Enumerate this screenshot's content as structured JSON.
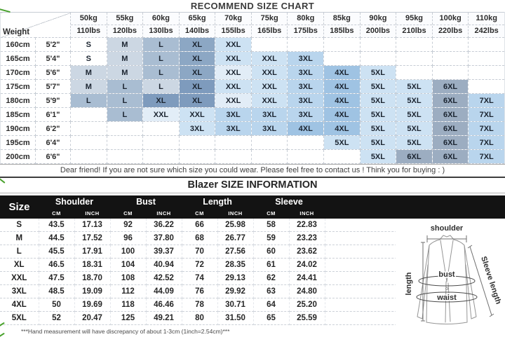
{
  "palette": {
    "w": "#ffffff",
    "a1": "#e2edf7",
    "a2": "#cde2f3",
    "a3": "#b9d5ed",
    "a4": "#9fc3e3",
    "b1": "#ccd7e3",
    "b2": "#a9bdd2",
    "b3": "#8ca7c4",
    "b4": "#7e9bbd",
    "g1": "#9cadc1",
    "header_bg": "#131313",
    "grid_line": "#c6ccd4",
    "artifact_green": "#49a22c"
  },
  "diagram": {
    "labels": {
      "shoulder": "shoulder",
      "length": "length",
      "sleeve": "Sleeve length",
      "bust": "bust",
      "waist": "waist"
    }
  },
  "chart_data": [
    {
      "type": "table",
      "title": "RECOMMEND SIZE CHART",
      "corner_label": "Weight",
      "columns": [
        {
          "kg": "50kg",
          "lbs": "110lbs"
        },
        {
          "kg": "55kg",
          "lbs": "120lbs"
        },
        {
          "kg": "60kg",
          "lbs": "130lbs"
        },
        {
          "kg": "65kg",
          "lbs": "140lbs"
        },
        {
          "kg": "70kg",
          "lbs": "155lbs"
        },
        {
          "kg": "75kg",
          "lbs": "165lbs"
        },
        {
          "kg": "80kg",
          "lbs": "175lbs"
        },
        {
          "kg": "85kg",
          "lbs": "185lbs"
        },
        {
          "kg": "90kg",
          "lbs": "200lbs"
        },
        {
          "kg": "95kg",
          "lbs": "210lbs"
        },
        {
          "kg": "100kg",
          "lbs": "220lbs"
        },
        {
          "kg": "110kg",
          "lbs": "242lbs"
        }
      ],
      "rows": [
        {
          "cm": "160cm",
          "ft": "5'2\"",
          "sizes": [
            "S",
            "M",
            "L",
            "XL",
            "XXL",
            "",
            "",
            "",
            "",
            "",
            "",
            ""
          ],
          "shades": [
            "w",
            "b1",
            "b2",
            "b3",
            "a2",
            "w",
            "w",
            "w",
            "w",
            "w",
            "w",
            "w"
          ]
        },
        {
          "cm": "165cm",
          "ft": "5'4\"",
          "sizes": [
            "S",
            "M",
            "L",
            "XL",
            "XXL",
            "XXL",
            "3XL",
            "",
            "",
            "",
            "",
            ""
          ],
          "shades": [
            "w",
            "b1",
            "b2",
            "b3",
            "a2",
            "a2",
            "a3",
            "w",
            "w",
            "w",
            "w",
            "w"
          ]
        },
        {
          "cm": "170cm",
          "ft": "5'6\"",
          "sizes": [
            "M",
            "M",
            "L",
            "XL",
            "XXL",
            "XXL",
            "3XL",
            "4XL",
            "5XL",
            "",
            "",
            ""
          ],
          "shades": [
            "b1",
            "b1",
            "b2",
            "b3",
            "a1",
            "a2",
            "a3",
            "a4",
            "a2",
            "w",
            "w",
            "w"
          ]
        },
        {
          "cm": "175cm",
          "ft": "5'7\"",
          "sizes": [
            "M",
            "L",
            "L",
            "XL",
            "XXL",
            "XXL",
            "3XL",
            "4XL",
            "5XL",
            "5XL",
            "6XL",
            ""
          ],
          "shades": [
            "b1",
            "b2",
            "b1",
            "b4",
            "a2",
            "a2",
            "a3",
            "a4",
            "a2",
            "a2",
            "g1",
            "w"
          ]
        },
        {
          "cm": "180cm",
          "ft": "5'9\"",
          "sizes": [
            "L",
            "L",
            "XL",
            "XL",
            "XXL",
            "XXL",
            "3XL",
            "4XL",
            "5XL",
            "5XL",
            "6XL",
            "7XL"
          ],
          "shades": [
            "b2",
            "b2",
            "b4",
            "b4",
            "a1",
            "a2",
            "a3",
            "a4",
            "a2",
            "a2",
            "g1",
            "a3"
          ]
        },
        {
          "cm": "185cm",
          "ft": "6'1\"",
          "sizes": [
            "",
            "L",
            "XXL",
            "XXL",
            "3XL",
            "3XL",
            "3XL",
            "4XL",
            "5XL",
            "5XL",
            "6XL",
            "7XL"
          ],
          "shades": [
            "w",
            "b2",
            "a1",
            "a2",
            "a3",
            "a3",
            "a3",
            "a4",
            "a2",
            "a2",
            "g1",
            "a3"
          ]
        },
        {
          "cm": "190cm",
          "ft": "6'2\"",
          "sizes": [
            "",
            "",
            "",
            "3XL",
            "3XL",
            "3XL",
            "4XL",
            "4XL",
            "5XL",
            "5XL",
            "6XL",
            "7XL"
          ],
          "shades": [
            "w",
            "w",
            "w",
            "a2",
            "a3",
            "a3",
            "a4",
            "a4",
            "a2",
            "a2",
            "g1",
            "a3"
          ]
        },
        {
          "cm": "195cm",
          "ft": "6'4\"",
          "sizes": [
            "",
            "",
            "",
            "",
            "",
            "",
            "",
            "5XL",
            "5XL",
            "5XL",
            "6XL",
            "7XL"
          ],
          "shades": [
            "w",
            "w",
            "w",
            "w",
            "w",
            "w",
            "w",
            "a2",
            "a2",
            "a2",
            "g1",
            "a3"
          ]
        },
        {
          "cm": "200cm",
          "ft": "6'6\"",
          "sizes": [
            "",
            "",
            "",
            "",
            "",
            "",
            "",
            "",
            "5XL",
            "6XL",
            "6XL",
            "7XL"
          ],
          "shades": [
            "w",
            "w",
            "w",
            "w",
            "w",
            "w",
            "w",
            "w",
            "a2",
            "g1",
            "g1",
            "a3"
          ]
        }
      ],
      "note": "Dear friend! If you are not sure which size you could wear. Please feel free to contact us ! Think you for buying : )"
    },
    {
      "type": "table",
      "title": "Blazer SIZE INFORMATION",
      "corner_label": "Size",
      "groups": [
        "Shoulder",
        "Bust",
        "Length",
        "Sleeve"
      ],
      "units": [
        "CM",
        "INCH"
      ],
      "rows": [
        {
          "size": "S",
          "values": [
            "43.5",
            "17.13",
            "92",
            "36.22",
            "66",
            "25.98",
            "58",
            "22.83"
          ]
        },
        {
          "size": "M",
          "values": [
            "44.5",
            "17.52",
            "96",
            "37.80",
            "68",
            "26.77",
            "59",
            "23.23"
          ]
        },
        {
          "size": "L",
          "values": [
            "45.5",
            "17.91",
            "100",
            "39.37",
            "70",
            "27.56",
            "60",
            "23.62"
          ]
        },
        {
          "size": "XL",
          "values": [
            "46.5",
            "18.31",
            "104",
            "40.94",
            "72",
            "28.35",
            "61",
            "24.02"
          ]
        },
        {
          "size": "XXL",
          "values": [
            "47.5",
            "18.70",
            "108",
            "42.52",
            "74",
            "29.13",
            "62",
            "24.41"
          ]
        },
        {
          "size": "3XL",
          "values": [
            "48.5",
            "19.09",
            "112",
            "44.09",
            "76",
            "29.92",
            "63",
            "24.80"
          ]
        },
        {
          "size": "4XL",
          "values": [
            "50",
            "19.69",
            "118",
            "46.46",
            "78",
            "30.71",
            "64",
            "25.20"
          ]
        },
        {
          "size": "5XL",
          "values": [
            "52",
            "20.47",
            "125",
            "49.21",
            "80",
            "31.50",
            "65",
            "25.59"
          ]
        }
      ],
      "footnote": "***Hand measurement will have discrepancy of about 1-3cm (1inch=2.54cm)***"
    }
  ]
}
